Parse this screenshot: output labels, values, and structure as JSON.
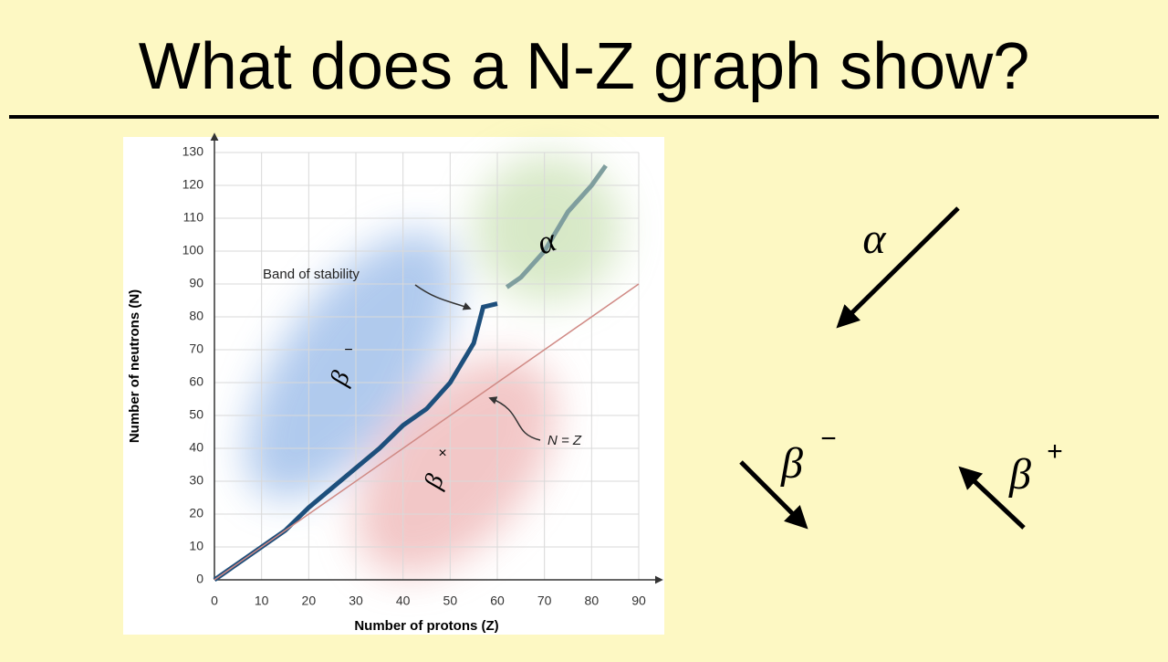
{
  "slide_title": "What does a N-Z graph show?",
  "chart_data": {
    "type": "line",
    "xlabel": "Number of protons (Z)",
    "ylabel": "Number of neutrons (N)",
    "xlim": [
      0,
      90
    ],
    "ylim": [
      0,
      130
    ],
    "xticks": [
      0,
      10,
      20,
      30,
      40,
      50,
      60,
      70,
      80,
      90
    ],
    "yticks": [
      0,
      10,
      20,
      30,
      40,
      50,
      60,
      70,
      80,
      90,
      100,
      110,
      120,
      130
    ],
    "grid": true,
    "series": [
      {
        "color": "#1d4f7c",
        "x": [
          0,
          2,
          5,
          10,
          15,
          20,
          25,
          30,
          35,
          40,
          45,
          50,
          55,
          57,
          60
        ],
        "values": [
          0,
          2,
          5,
          10,
          15,
          22,
          28,
          34,
          40,
          47,
          52,
          60,
          72,
          83,
          84
        ]
      },
      {
        "color": "#7f9e9e",
        "x": [
          62,
          65,
          70,
          75,
          80,
          83
        ],
        "values": [
          89,
          92,
          100,
          112,
          120,
          126
        ]
      },
      {
        "color": "#d08a85",
        "x": [
          0,
          90
        ],
        "values": [
          0,
          90
        ]
      }
    ],
    "annotations": [
      "Band of stability",
      "N = Z"
    ],
    "region_labels": [
      {
        "symbol": "β",
        "sup": "−"
      },
      {
        "symbol": "β",
        "sup": "×"
      },
      {
        "symbol": "α"
      }
    ]
  },
  "decay_arrows": [
    {
      "symbol": "α"
    },
    {
      "symbol": "β",
      "sup": "−"
    },
    {
      "symbol": "β",
      "sup": "+"
    }
  ]
}
